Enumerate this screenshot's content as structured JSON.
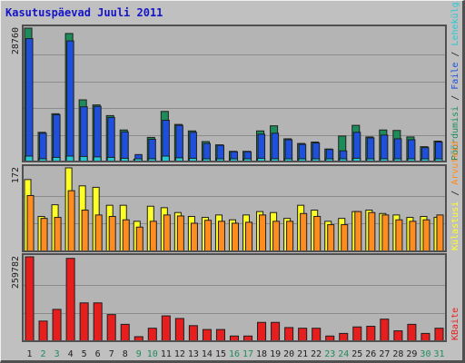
{
  "title": "Kasutuspäevad Juuli 2011",
  "colors": {
    "hits": "#1e8c5a",
    "files": "#1e50dc",
    "pages": "#28c8d2",
    "visits": "#ffff28",
    "sites": "#ff8c1e",
    "kbytes": "#e61e1e",
    "weekday_label": "#202020",
    "weekend_label": "#1e8c5a",
    "legend_kbytes": "#e61e1e"
  },
  "chart_data": {
    "type": "bar",
    "categories": [
      "1",
      "2",
      "3",
      "4",
      "5",
      "6",
      "7",
      "8",
      "9",
      "10",
      "11",
      "12",
      "13",
      "14",
      "15",
      "16",
      "17",
      "18",
      "19",
      "20",
      "21",
      "22",
      "23",
      "24",
      "25",
      "26",
      "27",
      "28",
      "29",
      "30",
      "31"
    ],
    "weekend_days": [
      "2",
      "3",
      "9",
      "10",
      "16",
      "17",
      "23",
      "24",
      "30",
      "31"
    ],
    "panels": [
      {
        "id": "top",
        "ytick_label": "28760",
        "ymax": 28760,
        "legend": [
          {
            "text": "Pöördumisi",
            "color_key": "hits"
          },
          {
            "text": " / ",
            "color_key": "weekday_label"
          },
          {
            "text": "Faile",
            "color_key": "files"
          },
          {
            "text": " / ",
            "color_key": "weekday_label"
          },
          {
            "text": "Lehekülgi",
            "color_key": "pages"
          }
        ],
        "series": [
          {
            "key": "hits",
            "values": [
              28760,
              6300,
              10300,
              27600,
              13300,
              12200,
              9900,
              6800,
              500,
              5200,
              10800,
              8000,
              6600,
              4300,
              3600,
              2200,
              2200,
              6600,
              7700,
              4900,
              3900,
              4200,
              2700,
              5500,
              7800,
              5300,
              6800,
              6700,
              5300,
              3200,
              4400
            ]
          },
          {
            "key": "files",
            "values": [
              26500,
              6100,
              10100,
              26000,
              11800,
              11900,
              9500,
              6400,
              1500,
              4800,
              8900,
              7800,
              6300,
              3900,
              3500,
              2100,
              2100,
              5900,
              6100,
              4700,
              3700,
              4000,
              2600,
              2300,
              6300,
              5100,
              5700,
              4900,
              4700,
              3000,
              4200
            ]
          },
          {
            "key": "pages",
            "values": [
              1200,
              600,
              900,
              1300,
              1100,
              1000,
              900,
              700,
              200,
              600,
              1300,
              800,
              700,
              500,
              400,
              300,
              300,
              700,
              600,
              500,
              400,
              500,
              300,
              400,
              700,
              500,
              600,
              500,
              500,
              400,
              500
            ]
          }
        ]
      },
      {
        "id": "middle",
        "ytick_label": "172",
        "ymax": 172,
        "legend": [
          {
            "text": "Külastusi",
            "color_key": "visits"
          },
          {
            "text": " / ",
            "color_key": "weekday_label"
          },
          {
            "text": "Arvuteid",
            "color_key": "sites"
          }
        ],
        "series": [
          {
            "key": "visits",
            "values": [
              148,
              72,
              96,
              172,
              135,
              132,
              95,
              95,
              62,
              93,
              90,
              80,
              72,
              70,
              75,
              65,
              75,
              82,
              80,
              68,
              95,
              85,
              62,
              68,
              82,
              85,
              78,
              75,
              70,
              72,
              70
            ]
          },
          {
            "key": "sites",
            "values": [
              115,
              68,
              70,
              125,
              85,
              75,
              72,
              65,
              50,
              62,
              75,
              73,
              58,
              64,
              62,
              58,
              60,
              75,
              62,
              62,
              78,
              72,
              55,
              55,
              82,
              80,
              75,
              65,
              62,
              65,
              75
            ]
          }
        ]
      },
      {
        "id": "bottom",
        "ytick_label": "259782",
        "ymax": 259782,
        "legend": [
          {
            "text": "KBaite",
            "color_key": "kbytes"
          }
        ],
        "series": [
          {
            "key": "kbytes",
            "values": [
              259782,
              62000,
              98000,
              255000,
              118000,
              118000,
              82000,
              52000,
              14000,
              40000,
              78000,
              70000,
              48000,
              36000,
              36000,
              16000,
              16000,
              58000,
              58000,
              42000,
              40000,
              40000,
              16000,
              24000,
              44000,
              46000,
              68000,
              32000,
              52000,
              24000,
              40000
            ]
          }
        ]
      }
    ]
  }
}
